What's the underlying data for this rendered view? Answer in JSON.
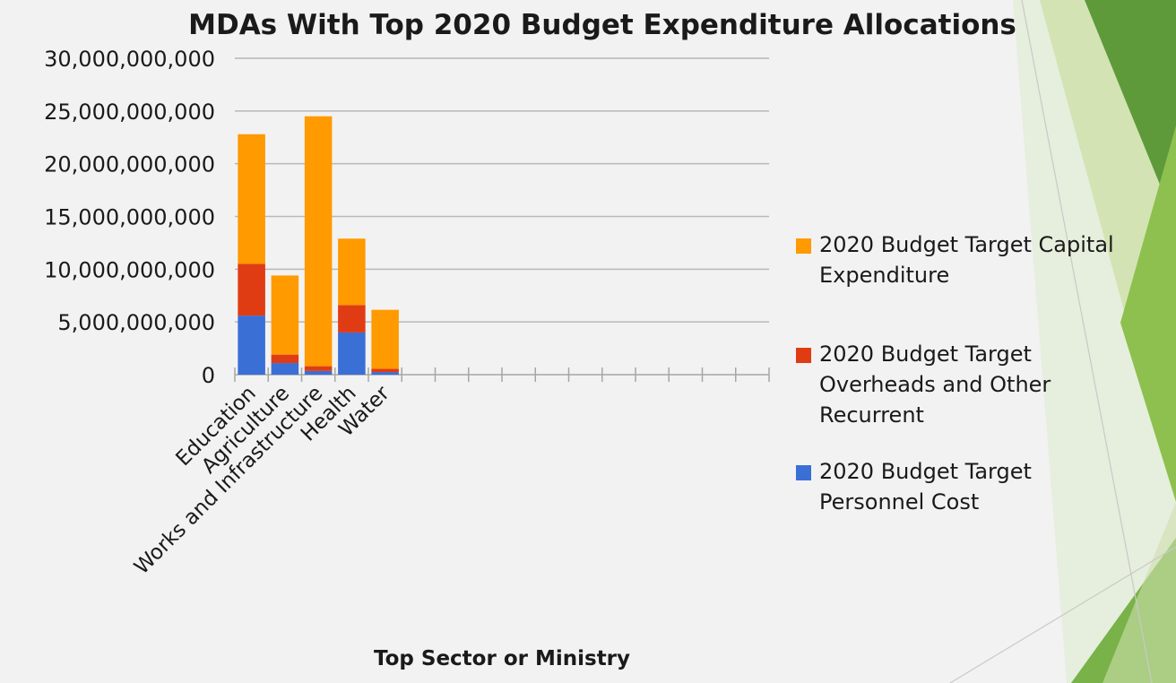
{
  "chart_data": {
    "type": "bar",
    "stacked": true,
    "title": "MDAs With Top 2020 Budget Expenditure Allocations",
    "xlabel": "Top Sector or Ministry",
    "ylabel": "",
    "ylim": [
      0,
      30000000000
    ],
    "y_ticks": [
      "0",
      "5,000,000,000",
      "10,000,000,000",
      "15,000,000,000",
      "20,000,000,000",
      "25,000,000,000",
      "30,000,000,000"
    ],
    "categories": [
      "Education",
      "Agriculture",
      "Works and Infrastructure",
      "Health",
      "Water",
      "",
      "",
      "",
      "",
      "",
      "",
      "",
      "",
      "",
      "",
      ""
    ],
    "series": [
      {
        "name": "2020 Budget Target Personnel Cost",
        "color": "#3a6fd6",
        "values": [
          5600000000,
          1100000000,
          350000000,
          4000000000,
          250000000,
          0,
          0,
          0,
          0,
          0,
          0,
          0,
          0,
          0,
          0,
          0
        ]
      },
      {
        "name": "2020 Budget Target Overheads and Other Recurrent",
        "color": "#e03c14",
        "values": [
          4900000000,
          800000000,
          450000000,
          2600000000,
          300000000,
          0,
          0,
          0,
          0,
          0,
          0,
          0,
          0,
          0,
          0,
          0
        ]
      },
      {
        "name": "2020 Budget Target Capital Expenditure",
        "color": "#ff9a00",
        "values": [
          12300000000,
          7500000000,
          23700000000,
          6300000000,
          5600000000,
          0,
          0,
          0,
          0,
          0,
          0,
          0,
          0,
          0,
          0,
          0
        ]
      }
    ],
    "legend": {
      "placement": "right",
      "items": [
        {
          "lines": [
            "2020 Budget Target Capital",
            "Expenditure"
          ],
          "color": "#ff9a00"
        },
        {
          "lines": [
            "2020 Budget Target",
            "Overheads and Other",
            "Recurrent"
          ],
          "color": "#e03c14"
        },
        {
          "lines": [
            "2020 Budget Target",
            "Personnel Cost"
          ],
          "color": "#3a6fd6"
        }
      ]
    },
    "grid": true,
    "gridline_color": "#b8b8b8"
  },
  "decoration": {
    "background": "#f2f2f2",
    "green_dark": "#5e9a3a",
    "green_light": "#cfe0ae",
    "green_mid": "#8dc04e"
  }
}
